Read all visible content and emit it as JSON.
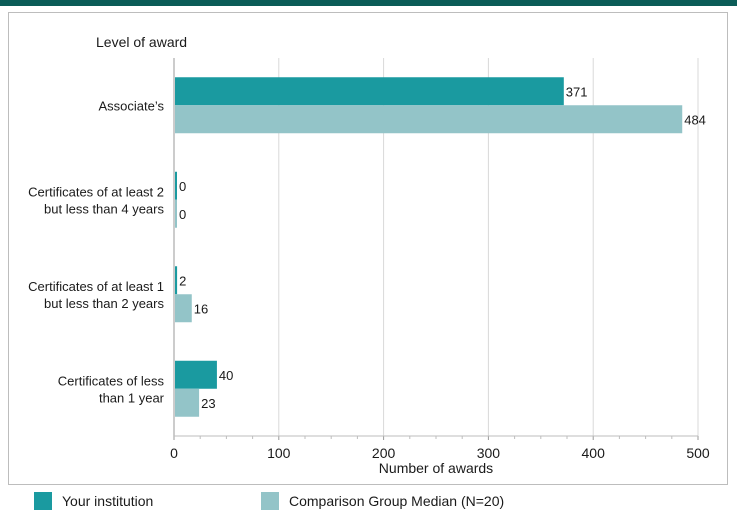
{
  "chart_data": {
    "type": "bar",
    "orientation": "horizontal",
    "categories": [
      [
        "Associate’s"
      ],
      [
        "Certificates of at least 2",
        "but less than 4 years"
      ],
      [
        "Certificates of at least 1",
        "but  less than 2 years"
      ],
      [
        "Certificates of less",
        "than 1 year"
      ]
    ],
    "series": [
      {
        "name": "Your institution",
        "values": [
          371,
          0,
          2,
          40
        ],
        "color": "#1a9aa0"
      },
      {
        "name": "Comparison Group Median (N=20)",
        "values": [
          484,
          0,
          16,
          23
        ],
        "color": "#93c4c8"
      }
    ],
    "title": "Level of award",
    "xlabel": "Number of awards",
    "xlim": [
      0,
      500
    ],
    "xticks": [
      "0",
      "100",
      "200",
      "300",
      "400",
      "500"
    ],
    "grid": true,
    "legend_position": "bottom"
  }
}
